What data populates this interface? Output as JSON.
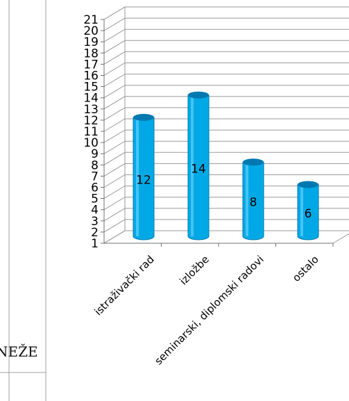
{
  "page": {
    "cut_text": "NEŽE"
  },
  "chart_data": {
    "type": "bar",
    "style": "3d-cylinder",
    "categories": [
      "istraživački rad",
      "izložbe",
      "seminarski, diplomski radovi",
      "ostalo"
    ],
    "values": [
      12,
      14,
      8,
      6
    ],
    "data_labels": [
      "12",
      "14",
      "8",
      "6"
    ],
    "ylim": [
      1,
      21
    ],
    "yticks": [
      "1",
      "2",
      "3",
      "4",
      "5",
      "6",
      "7",
      "8",
      "9",
      "10",
      "11",
      "12",
      "13",
      "14",
      "15",
      "16",
      "17",
      "18",
      "19",
      "20",
      "21"
    ],
    "grid": true,
    "legend": "none",
    "colors": {
      "bar": "#00a9e6",
      "bar_dark": "#0078b0",
      "bar_light": "#7fd9ff",
      "grid": "#9a9a9a"
    }
  }
}
